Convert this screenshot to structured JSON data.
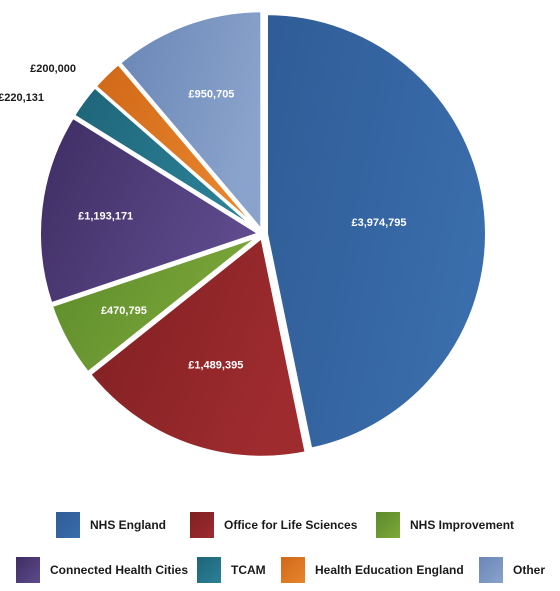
{
  "chart_data": {
    "type": "pie",
    "title": "",
    "slices": [
      {
        "label": "NHS England",
        "value": 3974795,
        "value_label": "£3,974,795",
        "color": "#2f5c96",
        "color2": "#3a6dab",
        "label_color": "#ffffff"
      },
      {
        "label": "Office for Life Sciences",
        "value": 1489395,
        "value_label": "£1,489,395",
        "color": "#7e1f22",
        "color2": "#9e2b2e",
        "label_color": "#ffffff"
      },
      {
        "label": "NHS Improvement",
        "value": 470795,
        "value_label": "£470,795",
        "color": "#5b8a2a",
        "color2": "#7da83a",
        "label_color": "#ffffff"
      },
      {
        "label": "Connected Health Cities",
        "value": 1193171,
        "value_label": "£1,193,171",
        "color": "#3e2d63",
        "color2": "#5e4a8c",
        "label_color": "#ffffff"
      },
      {
        "label": "TCAM",
        "value": 220131,
        "value_label": "£220,131",
        "color": "#1f6478",
        "color2": "#2a8197",
        "label_color": "#1a1a1a"
      },
      {
        "label": "Health Education England",
        "value": 200000,
        "value_label": "£200,000",
        "color": "#d06818",
        "color2": "#e8852c",
        "label_color": "#1a1a1a"
      },
      {
        "label": "Other",
        "value": 950705,
        "value_label": "£950,705",
        "color": "#6a86b6",
        "color2": "#8aa3cc",
        "label_color": "#ffffff"
      }
    ],
    "legend_placement": "bottom"
  }
}
